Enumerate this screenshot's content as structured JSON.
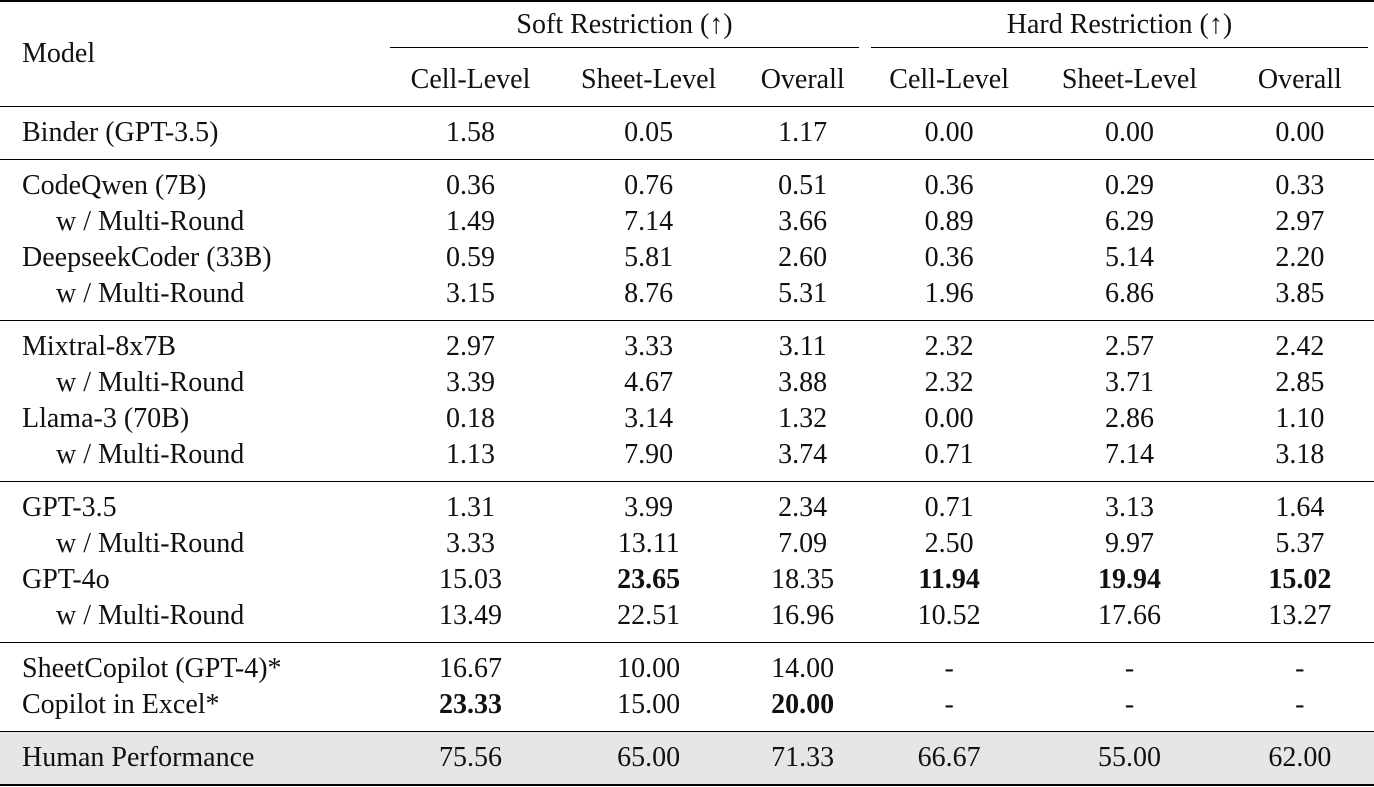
{
  "header": {
    "model_label": "Model",
    "groups": [
      "Soft Restriction (↑)",
      "Hard Restriction (↑)"
    ],
    "columns": [
      "Cell-Level",
      "Sheet-Level",
      "Overall",
      "Cell-Level",
      "Sheet-Level",
      "Overall"
    ]
  },
  "sections": [
    {
      "rows": [
        {
          "model": "Binder (GPT-3.5)",
          "sub": false,
          "values": [
            "1.58",
            "0.05",
            "1.17",
            "0.00",
            "0.00",
            "0.00"
          ],
          "bold": []
        }
      ]
    },
    {
      "rows": [
        {
          "model": "CodeQwen (7B)",
          "sub": false,
          "values": [
            "0.36",
            "0.76",
            "0.51",
            "0.36",
            "0.29",
            "0.33"
          ],
          "bold": []
        },
        {
          "model": "w / Multi-Round",
          "sub": true,
          "values": [
            "1.49",
            "7.14",
            "3.66",
            "0.89",
            "6.29",
            "2.97"
          ],
          "bold": []
        },
        {
          "model": "DeepseekCoder (33B)",
          "sub": false,
          "values": [
            "0.59",
            "5.81",
            "2.60",
            "0.36",
            "5.14",
            "2.20"
          ],
          "bold": []
        },
        {
          "model": "w / Multi-Round",
          "sub": true,
          "values": [
            "3.15",
            "8.76",
            "5.31",
            "1.96",
            "6.86",
            "3.85"
          ],
          "bold": []
        }
      ]
    },
    {
      "rows": [
        {
          "model": "Mixtral-8x7B",
          "sub": false,
          "values": [
            "2.97",
            "3.33",
            "3.11",
            "2.32",
            "2.57",
            "2.42"
          ],
          "bold": []
        },
        {
          "model": "w / Multi-Round",
          "sub": true,
          "values": [
            "3.39",
            "4.67",
            "3.88",
            "2.32",
            "3.71",
            "2.85"
          ],
          "bold": []
        },
        {
          "model": "Llama-3 (70B)",
          "sub": false,
          "values": [
            "0.18",
            "3.14",
            "1.32",
            "0.00",
            "2.86",
            "1.10"
          ],
          "bold": []
        },
        {
          "model": "w / Multi-Round",
          "sub": true,
          "values": [
            "1.13",
            "7.90",
            "3.74",
            "0.71",
            "7.14",
            "3.18"
          ],
          "bold": []
        }
      ]
    },
    {
      "rows": [
        {
          "model": "GPT-3.5",
          "sub": false,
          "values": [
            "1.31",
            "3.99",
            "2.34",
            "0.71",
            "3.13",
            "1.64"
          ],
          "bold": []
        },
        {
          "model": "w / Multi-Round",
          "sub": true,
          "values": [
            "3.33",
            "13.11",
            "7.09",
            "2.50",
            "9.97",
            "5.37"
          ],
          "bold": []
        },
        {
          "model": "GPT-4o",
          "sub": false,
          "values": [
            "15.03",
            "23.65",
            "18.35",
            "11.94",
            "19.94",
            "15.02"
          ],
          "bold": [
            1,
            3,
            4,
            5
          ]
        },
        {
          "model": "w / Multi-Round",
          "sub": true,
          "values": [
            "13.49",
            "22.51",
            "16.96",
            "10.52",
            "17.66",
            "13.27"
          ],
          "bold": []
        }
      ]
    },
    {
      "rows": [
        {
          "model": "SheetCopilot (GPT-4)*",
          "sub": false,
          "values": [
            "16.67",
            "10.00",
            "14.00",
            "-",
            "-",
            "-"
          ],
          "bold": []
        },
        {
          "model": "Copilot in Excel*",
          "sub": false,
          "values": [
            "23.33",
            "15.00",
            "20.00",
            "-",
            "-",
            "-"
          ],
          "bold": [
            0,
            2
          ]
        }
      ]
    },
    {
      "human": true,
      "rows": [
        {
          "model": "Human Performance",
          "sub": false,
          "values": [
            "75.56",
            "65.00",
            "71.33",
            "66.67",
            "55.00",
            "62.00"
          ],
          "bold": []
        }
      ]
    }
  ]
}
